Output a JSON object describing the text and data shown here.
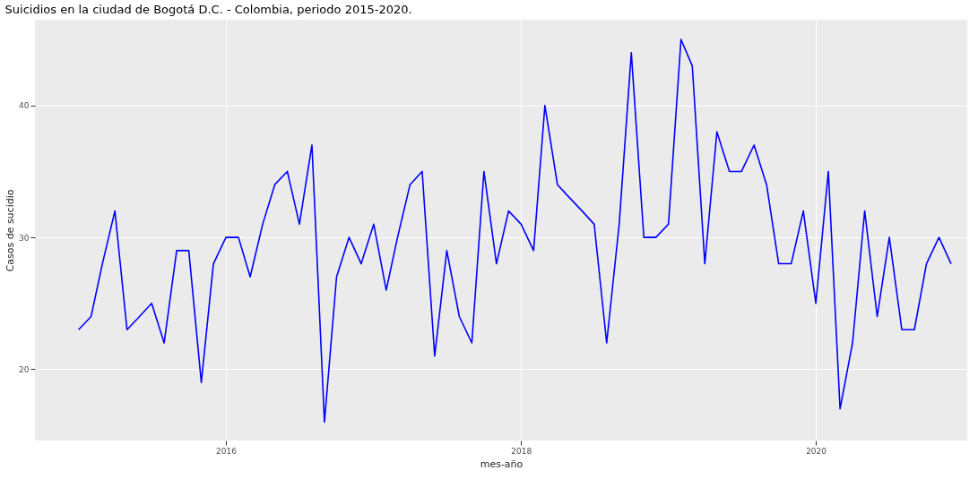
{
  "chart_data": {
    "type": "line",
    "title": "Suicidios en la ciudad de Bogotá D.C. - Colombia, periodo 2015-2020.",
    "xlabel": "mes-año",
    "ylabel": "Casos de sucidio",
    "x": [
      "2015-01",
      "2015-02",
      "2015-03",
      "2015-04",
      "2015-05",
      "2015-06",
      "2015-07",
      "2015-08",
      "2015-09",
      "2015-10",
      "2015-11",
      "2015-12",
      "2016-01",
      "2016-02",
      "2016-03",
      "2016-04",
      "2016-05",
      "2016-06",
      "2016-07",
      "2016-08",
      "2016-09",
      "2016-10",
      "2016-11",
      "2016-12",
      "2017-01",
      "2017-02",
      "2017-03",
      "2017-04",
      "2017-05",
      "2017-06",
      "2017-07",
      "2017-08",
      "2017-09",
      "2017-10",
      "2017-11",
      "2017-12",
      "2018-01",
      "2018-02",
      "2018-03",
      "2018-04",
      "2018-05",
      "2018-06",
      "2018-07",
      "2018-08",
      "2018-09",
      "2018-10",
      "2018-11",
      "2018-12",
      "2019-01",
      "2019-02",
      "2019-03",
      "2019-04",
      "2019-05",
      "2019-06",
      "2019-07",
      "2019-08",
      "2019-09",
      "2019-10",
      "2019-11",
      "2019-12",
      "2020-01",
      "2020-02",
      "2020-03",
      "2020-04",
      "2020-05",
      "2020-06",
      "2020-07",
      "2020-08",
      "2020-09",
      "2020-10",
      "2020-11",
      "2020-12"
    ],
    "series": [
      {
        "color": "#0000ff",
        "values": [
          23,
          24,
          28,
          32,
          23,
          24,
          25,
          22,
          29,
          29,
          19,
          28,
          30,
          30,
          27,
          31,
          34,
          35,
          31,
          37,
          16,
          27,
          30,
          28,
          31,
          26,
          30,
          34,
          35,
          21,
          29,
          24,
          22,
          35,
          28,
          32,
          31,
          29,
          40,
          34,
          33,
          32,
          31,
          22,
          31,
          44,
          30,
          30,
          31,
          45,
          43,
          28,
          38,
          35,
          35,
          37,
          34,
          28,
          28,
          32,
          25,
          35,
          17,
          22,
          32,
          24,
          30,
          23,
          23,
          28,
          30,
          28
        ]
      }
    ],
    "xlim": [
      "2014-09-15",
      "2021-01-10"
    ],
    "ylim": [
      14.6,
      46.5
    ],
    "xticks": [
      "2016",
      "2018",
      "2020"
    ],
    "yticks": [
      20,
      30,
      40
    ],
    "grid": true,
    "marker": "none",
    "line_style": "solid"
  }
}
